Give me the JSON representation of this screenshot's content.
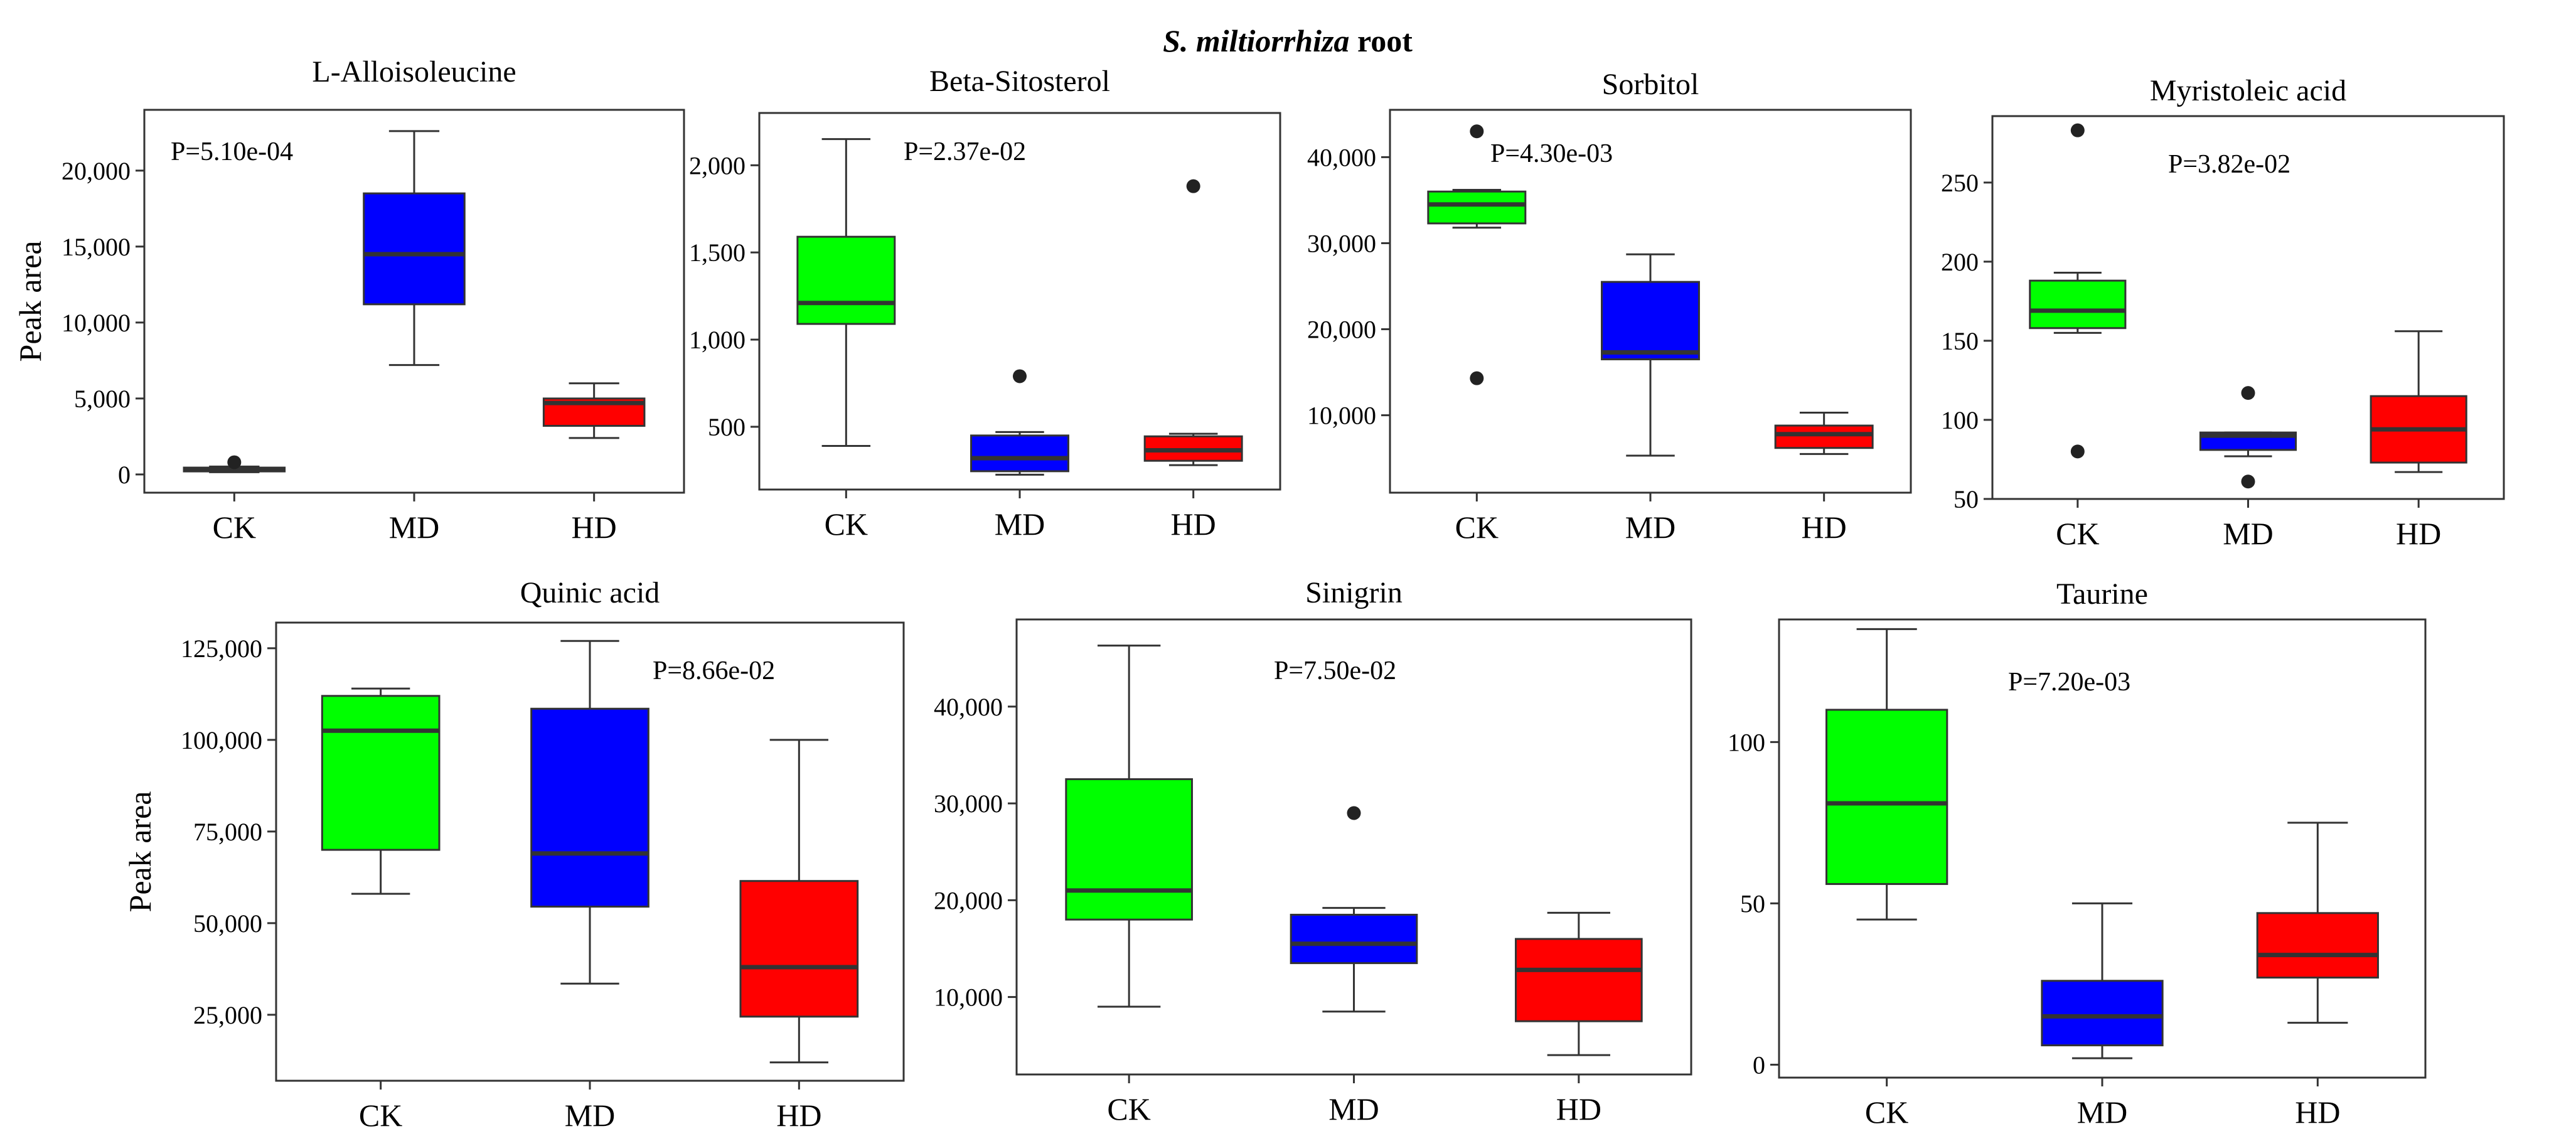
{
  "figure_title": {
    "italic": "S. miltiorrhiza",
    "rest": " root"
  },
  "colors": {
    "CK": "#00ff00",
    "MD": "#0000ff",
    "HD": "#ff0000"
  },
  "chart_data": [
    {
      "type": "box",
      "title": "L-Alloisoleucine",
      "ylabel": "Peak area",
      "pvalue": "P=5.10e-04",
      "categories": [
        "CK",
        "MD",
        "HD"
      ],
      "ylim": [
        -1200,
        24000
      ],
      "yticks": [
        0,
        5000,
        10000,
        15000,
        20000
      ],
      "ytick_labels": [
        "0",
        "5,000",
        "10,000",
        "15,000",
        "20,000"
      ],
      "boxes": [
        {
          "group": "CK",
          "min": 150,
          "q1": 200,
          "median": 320,
          "q3": 450,
          "max": 520,
          "outliers": [
            800
          ]
        },
        {
          "group": "MD",
          "min": 7200,
          "q1": 11200,
          "median": 14500,
          "q3": 18500,
          "max": 22600,
          "outliers": []
        },
        {
          "group": "HD",
          "min": 2400,
          "q1": 3200,
          "median": 4700,
          "q3": 5000,
          "max": 6000,
          "outliers": []
        }
      ]
    },
    {
      "type": "box",
      "title": "Beta-Sitosterol",
      "ylabel": "",
      "pvalue": "P=2.37e-02",
      "categories": [
        "CK",
        "MD",
        "HD"
      ],
      "ylim": [
        140,
        2300
      ],
      "yticks": [
        500,
        1000,
        1500,
        2000
      ],
      "ytick_labels": [
        "500",
        "1,000",
        "1,500",
        "2,000"
      ],
      "boxes": [
        {
          "group": "CK",
          "min": 390,
          "q1": 1090,
          "median": 1210,
          "q3": 1590,
          "max": 2150,
          "outliers": []
        },
        {
          "group": "MD",
          "min": 225,
          "q1": 245,
          "median": 320,
          "q3": 450,
          "max": 470,
          "outliers": [
            790
          ]
        },
        {
          "group": "HD",
          "min": 280,
          "q1": 305,
          "median": 365,
          "q3": 445,
          "max": 460,
          "outliers": [
            1880
          ]
        }
      ]
    },
    {
      "type": "box",
      "title": "Sorbitol",
      "ylabel": "",
      "pvalue": "P=4.30e-03",
      "categories": [
        "CK",
        "MD",
        "HD"
      ],
      "ylim": [
        1000,
        45500
      ],
      "yticks": [
        10000,
        20000,
        30000,
        40000
      ],
      "ytick_labels": [
        "10,000",
        "20,000",
        "30,000",
        "40,000"
      ],
      "boxes": [
        {
          "group": "CK",
          "min": 31800,
          "q1": 32300,
          "median": 34500,
          "q3": 36000,
          "max": 36200,
          "outliers": [
            43000,
            14300
          ]
        },
        {
          "group": "MD",
          "min": 5300,
          "q1": 16500,
          "median": 17300,
          "q3": 25500,
          "max": 28700,
          "outliers": []
        },
        {
          "group": "HD",
          "min": 5500,
          "q1": 6200,
          "median": 7800,
          "q3": 8800,
          "max": 10300,
          "outliers": []
        }
      ]
    },
    {
      "type": "box",
      "title": "Myristoleic acid",
      "ylabel": "",
      "pvalue": "P=3.82e-02",
      "categories": [
        "CK",
        "MD",
        "HD"
      ],
      "ylim": [
        50,
        292
      ],
      "yticks": [
        50,
        100,
        150,
        200,
        250
      ],
      "ytick_labels": [
        "50",
        "100",
        "150",
        "200",
        "250"
      ],
      "boxes": [
        {
          "group": "CK",
          "min": 155,
          "q1": 158,
          "median": 169,
          "q3": 188,
          "max": 193,
          "outliers": [
            283,
            80
          ]
        },
        {
          "group": "MD",
          "min": 77,
          "q1": 81,
          "median": 90,
          "q3": 92,
          "max": 92,
          "outliers": [
            117,
            61
          ]
        },
        {
          "group": "HD",
          "min": 67,
          "q1": 73,
          "median": 94,
          "q3": 115,
          "max": 156,
          "outliers": []
        }
      ]
    },
    {
      "type": "box",
      "title": "Quinic acid",
      "ylabel": "Peak area",
      "pvalue": "P=8.66e-02",
      "categories": [
        "CK",
        "MD",
        "HD"
      ],
      "ylim": [
        7000,
        132000
      ],
      "yticks": [
        25000,
        50000,
        75000,
        100000,
        125000
      ],
      "ytick_labels": [
        "25,000",
        "50,000",
        "75,000",
        "100,000",
        "125,000"
      ],
      "boxes": [
        {
          "group": "CK",
          "min": 58000,
          "q1": 70000,
          "median": 102500,
          "q3": 112000,
          "max": 114000,
          "outliers": []
        },
        {
          "group": "MD",
          "min": 33500,
          "q1": 54500,
          "median": 69000,
          "q3": 108500,
          "max": 127000,
          "outliers": []
        },
        {
          "group": "HD",
          "min": 12000,
          "q1": 24500,
          "median": 38000,
          "q3": 61500,
          "max": 100000,
          "outliers": []
        }
      ]
    },
    {
      "type": "box",
      "title": "Sinigrin",
      "ylabel": "",
      "pvalue": "P=7.50e-02",
      "categories": [
        "CK",
        "MD",
        "HD"
      ],
      "ylim": [
        2000,
        49000
      ],
      "yticks": [
        10000,
        20000,
        30000,
        40000
      ],
      "ytick_labels": [
        "10,000",
        "20,000",
        "30,000",
        "40,000"
      ],
      "boxes": [
        {
          "group": "CK",
          "min": 9000,
          "q1": 18000,
          "median": 21000,
          "q3": 32500,
          "max": 46300,
          "outliers": []
        },
        {
          "group": "MD",
          "min": 8500,
          "q1": 13500,
          "median": 15500,
          "q3": 18500,
          "max": 19200,
          "outliers": [
            29000
          ]
        },
        {
          "group": "HD",
          "min": 4000,
          "q1": 7500,
          "median": 12800,
          "q3": 16000,
          "max": 18700,
          "outliers": []
        }
      ]
    },
    {
      "type": "box",
      "title": "Taurine",
      "ylabel": "",
      "pvalue": "P=7.20e-03",
      "categories": [
        "CK",
        "MD",
        "HD"
      ],
      "ylim": [
        -4,
        138
      ],
      "yticks": [
        0,
        50,
        100
      ],
      "ytick_labels": [
        "0",
        "50",
        "100"
      ],
      "boxes": [
        {
          "group": "CK",
          "min": 45,
          "q1": 56,
          "median": 81,
          "q3": 110,
          "max": 135,
          "outliers": []
        },
        {
          "group": "MD",
          "min": 2,
          "q1": 6,
          "median": 15,
          "q3": 26,
          "max": 50,
          "outliers": []
        },
        {
          "group": "HD",
          "min": 13,
          "q1": 27,
          "median": 34,
          "q3": 47,
          "max": 75,
          "outliers": []
        }
      ]
    }
  ]
}
